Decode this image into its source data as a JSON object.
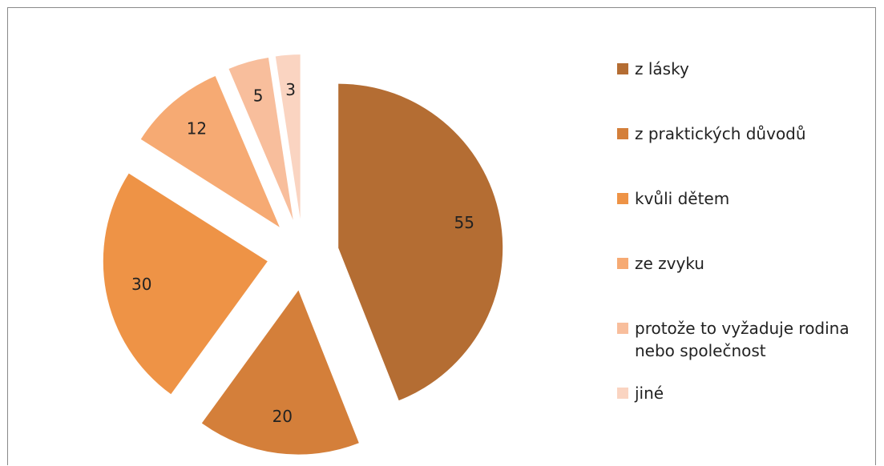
{
  "chart_data": {
    "type": "pie",
    "categories": [
      "z lásky",
      "z praktických důvodů",
      "kvůli dětem",
      "ze zvyku",
      "protože to vyžaduje rodina nebo společnost",
      "jiné"
    ],
    "values": [
      55,
      20,
      30,
      12,
      5,
      3
    ],
    "colors": [
      "#b46d33",
      "#d47f3a",
      "#ee9346",
      "#f6aa73",
      "#f8be9c",
      "#fad4c1"
    ],
    "exploded": true,
    "legend": "right"
  }
}
